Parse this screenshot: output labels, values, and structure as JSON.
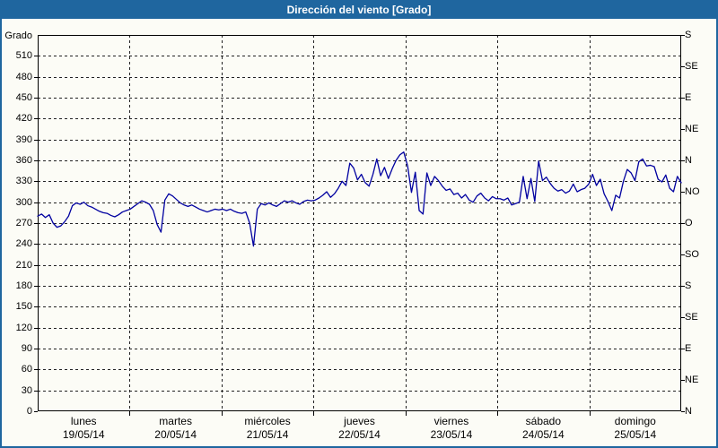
{
  "title": "Dirección del viento [Grado]",
  "colors": {
    "titlebar": "#1f669f",
    "frame_border": "#1f669f",
    "background": "#fcfcf6",
    "line": "#0000a0",
    "grid": "#222222",
    "axis": "#000000",
    "title_text": "#ffffff"
  },
  "y_axis": {
    "title": "Grado",
    "tick_values": [
      0,
      30,
      60,
      90,
      120,
      150,
      180,
      210,
      240,
      270,
      300,
      330,
      360,
      390,
      420,
      450,
      480,
      510
    ],
    "max": 540
  },
  "right_axis": {
    "ticks": [
      {
        "deg": 540,
        "label": "S"
      },
      {
        "deg": 495,
        "label": "SE"
      },
      {
        "deg": 450,
        "label": "E"
      },
      {
        "deg": 405,
        "label": "NE"
      },
      {
        "deg": 360,
        "label": "N"
      },
      {
        "deg": 315,
        "label": "NO"
      },
      {
        "deg": 270,
        "label": "O"
      },
      {
        "deg": 225,
        "label": "SO"
      },
      {
        "deg": 180,
        "label": "S"
      },
      {
        "deg": 135,
        "label": "SE"
      },
      {
        "deg": 90,
        "label": "E"
      },
      {
        "deg": 45,
        "label": "NE"
      },
      {
        "deg": 0,
        "label": "N"
      }
    ]
  },
  "x_axis": {
    "days": [
      {
        "name": "lunes",
        "date": "19/05/14"
      },
      {
        "name": "martes",
        "date": "20/05/14"
      },
      {
        "name": "miércoles",
        "date": "21/05/14"
      },
      {
        "name": "jueves",
        "date": "22/05/14"
      },
      {
        "name": "viernes",
        "date": "23/05/14"
      },
      {
        "name": "sábado",
        "date": "24/05/14"
      },
      {
        "name": "domingo",
        "date": "25/05/14"
      }
    ]
  },
  "chart_data": {
    "type": "line",
    "title": "Dirección del viento [Grado]",
    "ylabel": "Grado",
    "ylim": [
      0,
      540
    ],
    "grid": true,
    "legend": "none",
    "x_categories": [
      "lunes 19/05/14",
      "martes 20/05/14",
      "miércoles 21/05/14",
      "jueves 22/05/14",
      "viernes 23/05/14",
      "sábado 24/05/14",
      "domingo 25/05/14"
    ],
    "points_per_day": 24,
    "series": [
      {
        "name": "Dirección del viento",
        "values": [
          280,
          283,
          278,
          282,
          270,
          264,
          266,
          272,
          280,
          295,
          299,
          297,
          300,
          295,
          293,
          290,
          287,
          285,
          284,
          281,
          279,
          282,
          286,
          288,
          290,
          294,
          298,
          302,
          300,
          297,
          288,
          268,
          257,
          303,
          312,
          309,
          304,
          299,
          296,
          294,
          296,
          293,
          290,
          288,
          286,
          288,
          290,
          289,
          290,
          288,
          290,
          287,
          285,
          284,
          286,
          270,
          237,
          290,
          298,
          296,
          299,
          296,
          294,
          298,
          302,
          300,
          302,
          299,
          297,
          301,
          303,
          302,
          303,
          306,
          310,
          315,
          307,
          312,
          320,
          330,
          324,
          356,
          349,
          332,
          340,
          328,
          323,
          340,
          362,
          338,
          350,
          334,
          348,
          360,
          368,
          372,
          352,
          314,
          343,
          288,
          283,
          342,
          324,
          337,
          331,
          323,
          317,
          319,
          311,
          313,
          306,
          311,
          303,
          300,
          309,
          313,
          306,
          302,
          308,
          305,
          305,
          303,
          306,
          296,
          298,
          300,
          337,
          305,
          334,
          301,
          359,
          331,
          336,
          327,
          320,
          316,
          318,
          313,
          316,
          326,
          315,
          318,
          320,
          326,
          340,
          324,
          333,
          312,
          301,
          288,
          310,
          306,
          330,
          347,
          342,
          331,
          358,
          362,
          352,
          353,
          351,
          333,
          329,
          339,
          320,
          315,
          337,
          328
        ]
      }
    ]
  }
}
